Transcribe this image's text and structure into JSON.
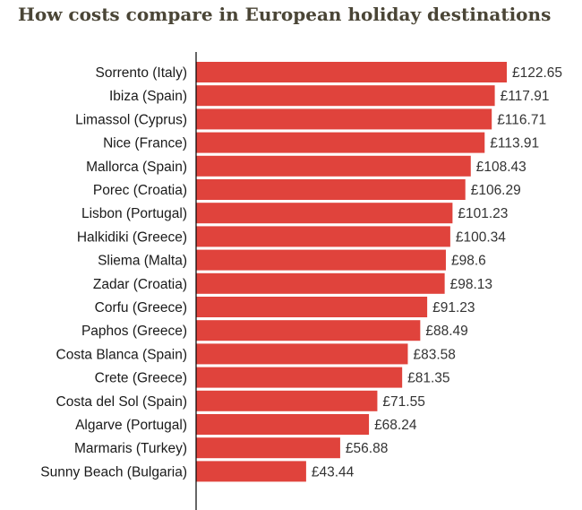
{
  "title": "How costs compare in European holiday destinations",
  "colors": {
    "bar": "#e0433c",
    "axis": "#000000",
    "title": "#4a4536"
  },
  "chart_data": {
    "type": "bar",
    "orientation": "horizontal",
    "title": "How costs compare in European holiday destinations",
    "xlabel": "",
    "ylabel": "",
    "value_prefix": "£",
    "xlim": [
      0,
      122.65
    ],
    "grid": false,
    "categories": [
      "Sorrento (Italy)",
      "Ibiza (Spain)",
      "Limassol (Cyprus)",
      "Nice (France)",
      "Mallorca (Spain)",
      "Porec (Croatia)",
      "Lisbon (Portugal)",
      "Halkidiki (Greece)",
      "Sliema (Malta)",
      "Zadar (Croatia)",
      "Corfu (Greece)",
      "Paphos (Greece)",
      "Costa Blanca (Spain)",
      "Crete (Greece)",
      "Costa del Sol (Spain)",
      "Algarve (Portugal)",
      "Marmaris (Turkey)",
      "Sunny Beach (Bulgaria)"
    ],
    "values": [
      122.65,
      117.91,
      116.71,
      113.91,
      108.43,
      106.29,
      101.23,
      100.34,
      98.6,
      98.13,
      91.23,
      88.49,
      83.58,
      81.35,
      71.55,
      68.24,
      56.88,
      43.44
    ],
    "value_labels": [
      "£122.65",
      "£117.91",
      "£116.71",
      "£113.91",
      "£108.43",
      "£106.29",
      "£101.23",
      "£100.34",
      "£98.6",
      "£98.13",
      "£91.23",
      "£88.49",
      "£83.58",
      "£81.35",
      "£71.55",
      "£68.24",
      "£56.88",
      "£43.44"
    ]
  }
}
